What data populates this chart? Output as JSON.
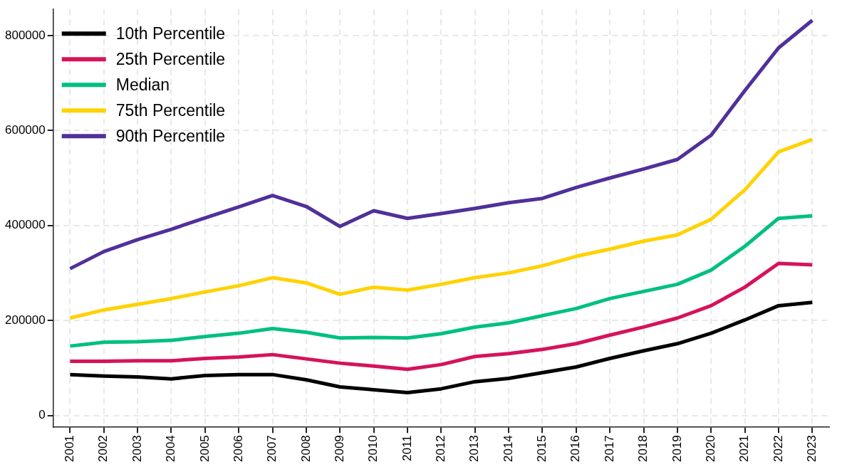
{
  "chart_data": {
    "type": "line",
    "categories": [
      "2001",
      "2002",
      "2003",
      "2004",
      "2005",
      "2006",
      "2007",
      "2008",
      "2009",
      "2010",
      "2011",
      "2012",
      "2013",
      "2014",
      "2015",
      "2016",
      "2017",
      "2018",
      "2019",
      "2020",
      "2021",
      "2022",
      "2023"
    ],
    "series": [
      {
        "name": "10th Percentile",
        "color": "#000000",
        "values": [
          86000,
          83000,
          81000,
          77000,
          84000,
          86000,
          86000,
          75000,
          60000,
          54000,
          48000,
          56000,
          71000,
          78000,
          90000,
          102000,
          120000,
          136000,
          151000,
          173000,
          201000,
          231000,
          238000
        ]
      },
      {
        "name": "25th Percentile",
        "color": "#d5135c",
        "values": [
          114000,
          114000,
          115000,
          115000,
          120000,
          123000,
          128000,
          119000,
          110000,
          104000,
          97000,
          107000,
          124000,
          130000,
          139000,
          151000,
          169000,
          186000,
          205000,
          231000,
          270000,
          320000,
          317000
        ]
      },
      {
        "name": "Median",
        "color": "#00c07f",
        "values": [
          146000,
          154000,
          155000,
          158000,
          166000,
          173000,
          183000,
          175000,
          163000,
          164000,
          163000,
          172000,
          186000,
          195000,
          210000,
          225000,
          246000,
          261000,
          276000,
          306000,
          356000,
          415000,
          420000
        ]
      },
      {
        "name": "75th Percentile",
        "color": "#ffd200",
        "values": [
          205000,
          222000,
          234000,
          246000,
          260000,
          273000,
          290000,
          279000,
          255000,
          270000,
          264000,
          276000,
          290000,
          300000,
          315000,
          335000,
          350000,
          367000,
          380000,
          413000,
          475000,
          555000,
          581000
        ]
      },
      {
        "name": "90th Percentile",
        "color": "#50309a",
        "values": [
          309000,
          345000,
          370000,
          392000,
          416000,
          439000,
          463000,
          440000,
          398000,
          431000,
          415000,
          425000,
          436000,
          448000,
          457000,
          480000,
          500000,
          519000,
          539000,
          590000,
          684000,
          774000,
          832000
        ]
      }
    ],
    "ylim": [
      -25000,
      855000
    ],
    "yticks": [
      0,
      200000,
      400000,
      600000,
      800000
    ],
    "grid": true,
    "legend": "top left",
    "marker": "none",
    "line_style": "solid"
  }
}
